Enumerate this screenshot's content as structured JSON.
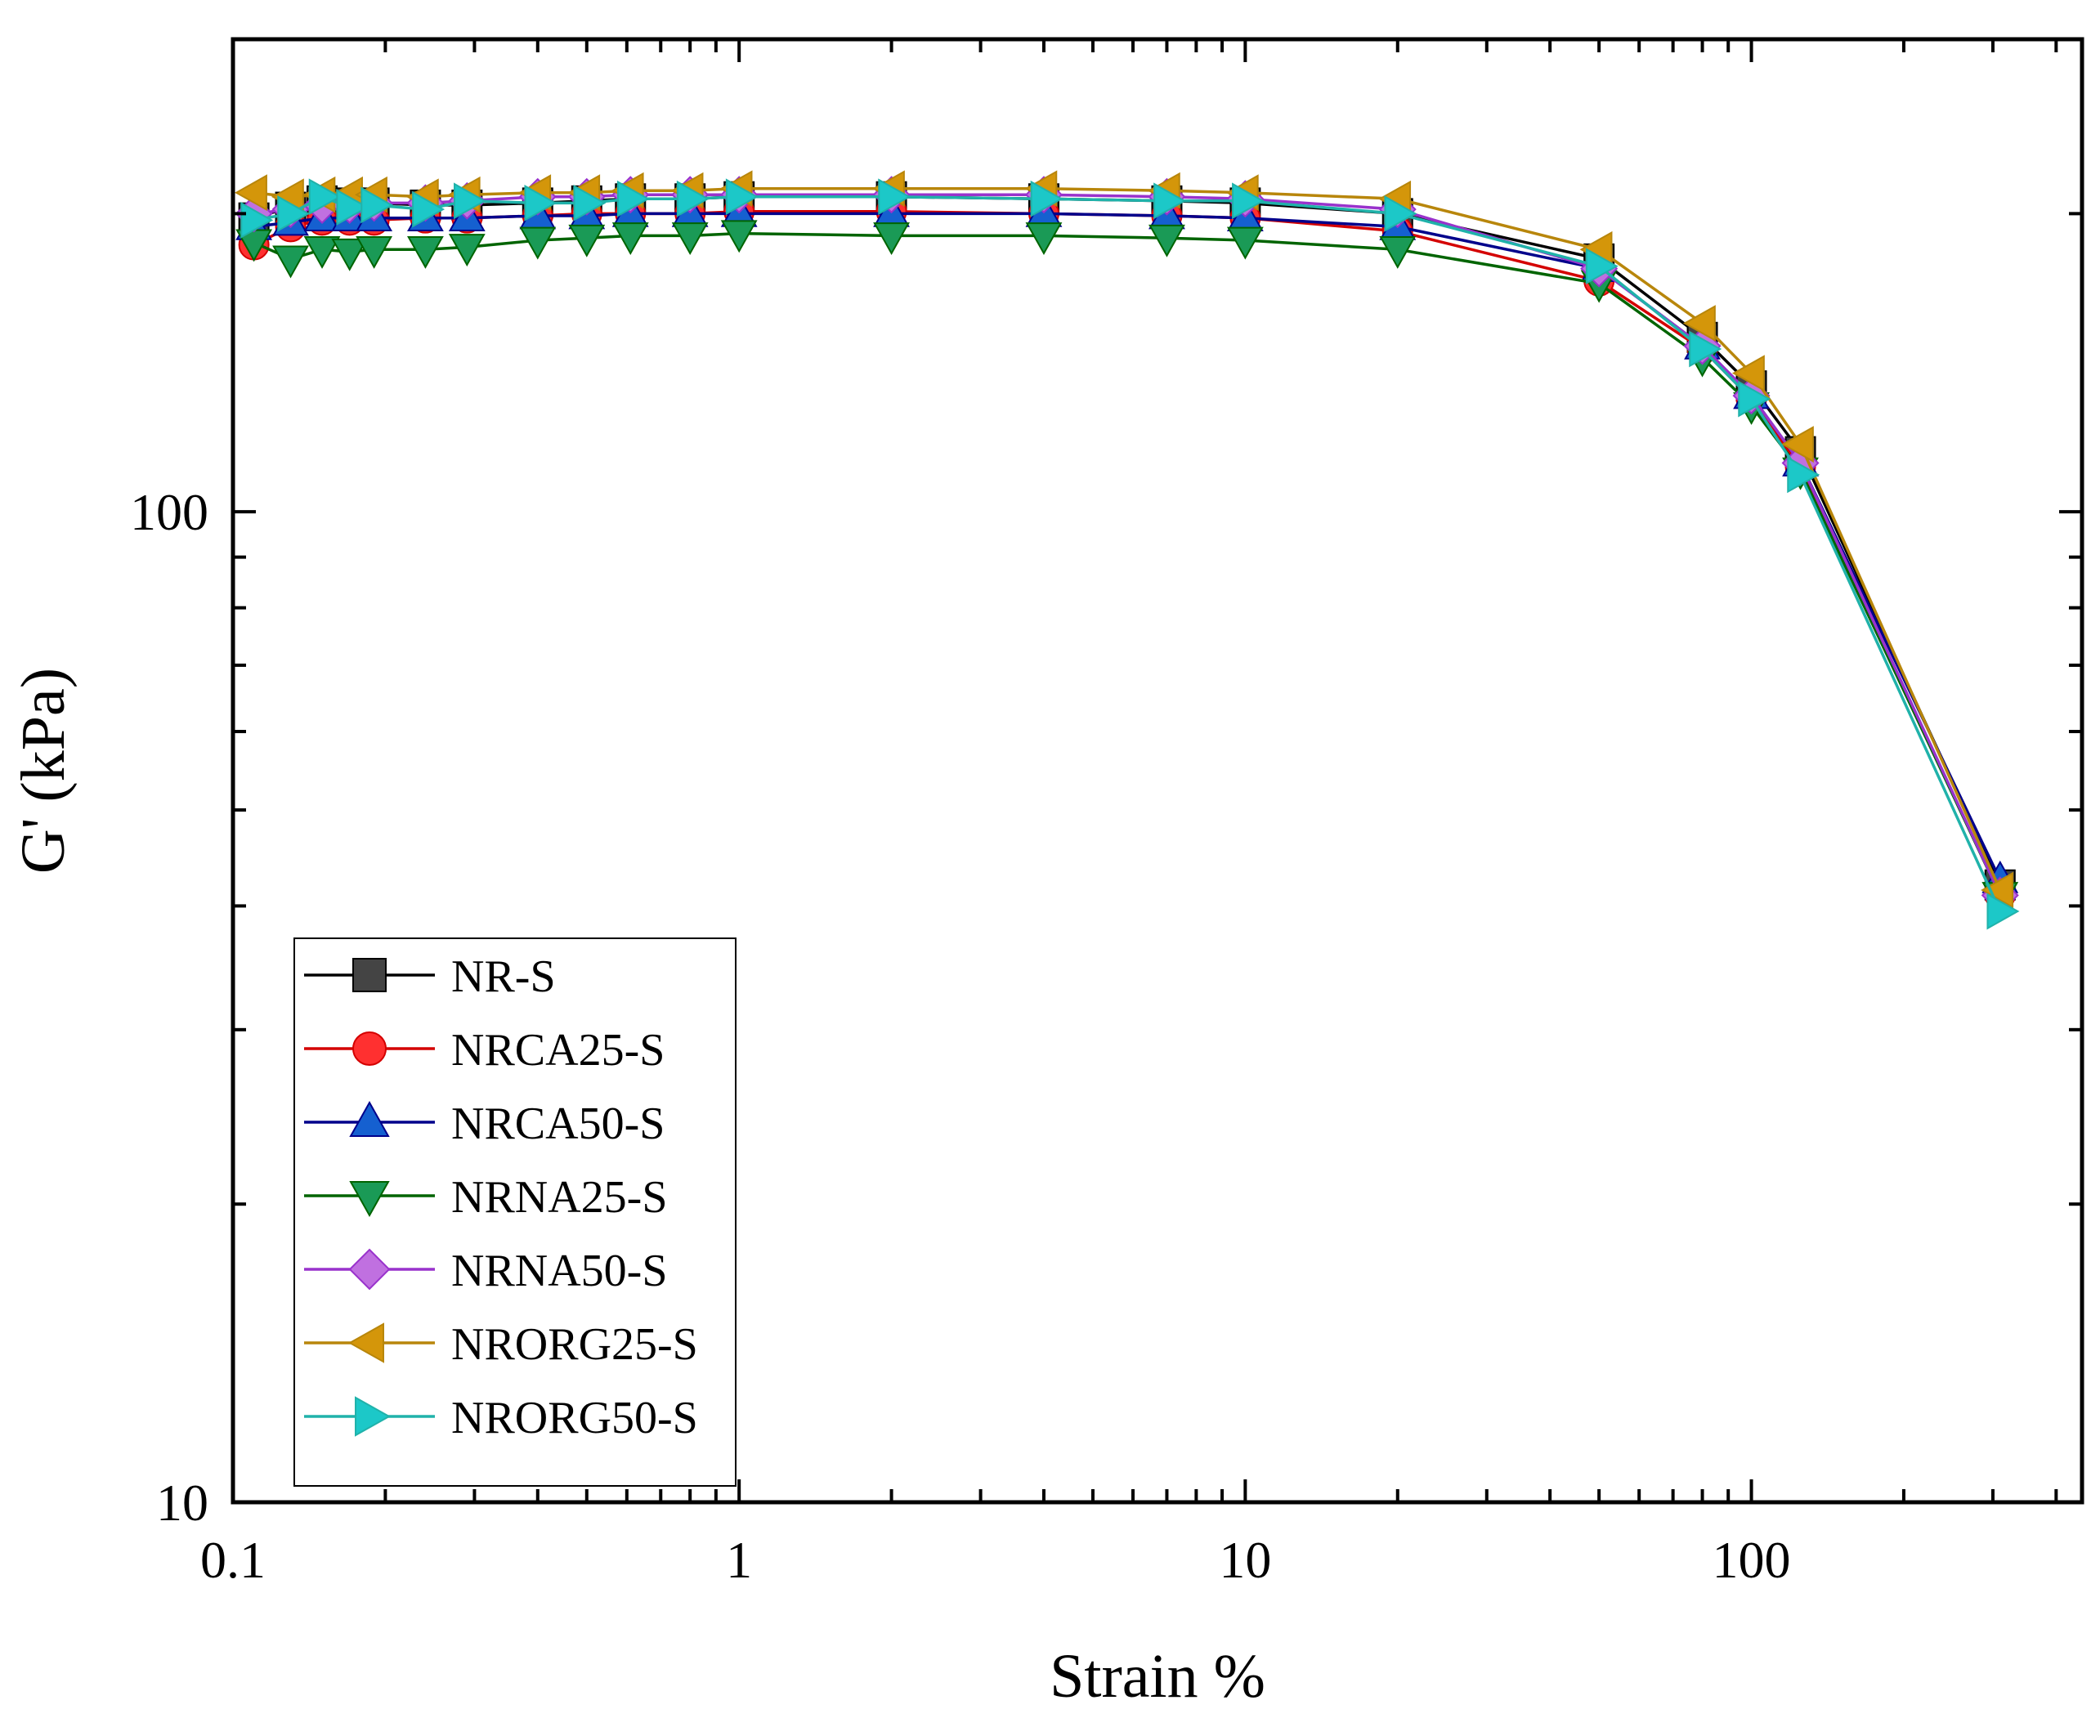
{
  "chart_data": {
    "type": "line",
    "title": "",
    "xlabel": "Strain %",
    "ylabel": "G' (kPa)",
    "xscale": "log",
    "yscale": "log",
    "xlim": [
      0.1,
      450
    ],
    "ylim": [
      10,
      300
    ],
    "x_ticks": [
      {
        "value": 0.1,
        "label": "0.1"
      },
      {
        "value": 1,
        "label": "1"
      },
      {
        "value": 10,
        "label": "10"
      },
      {
        "value": 100,
        "label": "100"
      }
    ],
    "y_ticks": [
      {
        "value": 10,
        "label": "10"
      },
      {
        "value": 100,
        "label": "100"
      }
    ],
    "legend_position": "bottom-left",
    "grid": false,
    "series": [
      {
        "name": "NR-S",
        "color": "#000000",
        "fill": "#444444",
        "marker": "square",
        "x": [
          0.11,
          0.13,
          0.15,
          0.17,
          0.19,
          0.24,
          0.29,
          0.4,
          0.5,
          0.61,
          0.8,
          1,
          2,
          4,
          7,
          10,
          20,
          50,
          80,
          100,
          125,
          310
        ],
        "y": [
          198,
          203,
          206,
          205,
          205,
          204,
          204,
          205,
          206,
          207,
          207,
          208,
          208,
          207,
          206,
          205,
          200,
          180,
          150,
          134,
          115,
          42
        ]
      },
      {
        "name": "NRCA25-S",
        "color": "#d40000",
        "fill": "#ff3030",
        "marker": "circle",
        "x": [
          0.11,
          0.13,
          0.15,
          0.17,
          0.19,
          0.24,
          0.29,
          0.4,
          0.5,
          0.61,
          0.8,
          1,
          2,
          4,
          7,
          10,
          20,
          50,
          80,
          100,
          125,
          310
        ],
        "y": [
          186,
          194,
          197,
          197,
          197,
          198,
          198,
          199,
          200,
          200,
          200,
          201,
          201,
          200,
          199,
          198,
          192,
          171,
          146,
          130,
          111,
          41
        ]
      },
      {
        "name": "NRCA50-S",
        "color": "#00008b",
        "fill": "#1560d0",
        "marker": "triangle-up",
        "x": [
          0.11,
          0.13,
          0.15,
          0.17,
          0.19,
          0.24,
          0.29,
          0.4,
          0.5,
          0.61,
          0.8,
          1,
          2,
          4,
          7,
          10,
          20,
          50,
          80,
          100,
          125,
          310
        ],
        "y": [
          194,
          196,
          198,
          198,
          198,
          198,
          198,
          199,
          199,
          200,
          200,
          200,
          200,
          200,
          199,
          198,
          194,
          176,
          147,
          131,
          112,
          42.5
        ]
      },
      {
        "name": "NRNA25-S",
        "color": "#006400",
        "fill": "#1a9a56",
        "marker": "triangle-down",
        "x": [
          0.11,
          0.13,
          0.15,
          0.17,
          0.19,
          0.24,
          0.29,
          0.4,
          0.5,
          0.61,
          0.8,
          1,
          2,
          4,
          7,
          10,
          20,
          50,
          80,
          100,
          125,
          310
        ],
        "y": [
          187,
          180,
          184,
          183,
          184,
          184,
          185,
          188,
          189,
          190,
          190,
          191,
          190,
          190,
          189,
          188,
          184,
          170,
          143,
          128,
          110,
          41
        ]
      },
      {
        "name": "NRNA50-S",
        "color": "#9932cc",
        "fill": "#c070e0",
        "marker": "diamond",
        "x": [
          0.11,
          0.13,
          0.15,
          0.17,
          0.19,
          0.24,
          0.29,
          0.4,
          0.5,
          0.61,
          0.8,
          1,
          2,
          4,
          7,
          10,
          20,
          50,
          80,
          100,
          125,
          310
        ],
        "y": [
          200,
          202,
          204,
          204,
          205,
          205,
          206,
          208,
          208,
          209,
          209,
          209,
          209,
          209,
          208,
          207,
          202,
          176,
          147,
          131,
          112,
          41
        ]
      },
      {
        "name": "NRORG25-S",
        "color": "#b8860b",
        "fill": "#d4960a",
        "marker": "triangle-left",
        "x": [
          0.11,
          0.13,
          0.15,
          0.17,
          0.19,
          0.24,
          0.29,
          0.4,
          0.5,
          0.61,
          0.8,
          1,
          2,
          4,
          7,
          10,
          20,
          50,
          80,
          100,
          125,
          310
        ],
        "y": [
          210,
          208,
          209,
          209,
          209,
          208,
          209,
          210,
          210,
          211,
          211,
          212,
          212,
          212,
          211,
          210,
          207,
          184,
          155,
          138,
          117,
          41.5
        ]
      },
      {
        "name": "NRORG50-S",
        "color": "#20b2aa",
        "fill": "#1cc8c8",
        "marker": "triangle-right",
        "x": [
          0.11,
          0.13,
          0.15,
          0.17,
          0.19,
          0.24,
          0.29,
          0.4,
          0.5,
          0.61,
          0.8,
          1,
          2,
          4,
          7,
          10,
          20,
          50,
          80,
          100,
          125,
          310
        ],
        "y": [
          197,
          200,
          208,
          203,
          204,
          202,
          206,
          205,
          205,
          207,
          207,
          208,
          208,
          207,
          206,
          206,
          200,
          177,
          146,
          130,
          109,
          39.5
        ]
      }
    ]
  }
}
